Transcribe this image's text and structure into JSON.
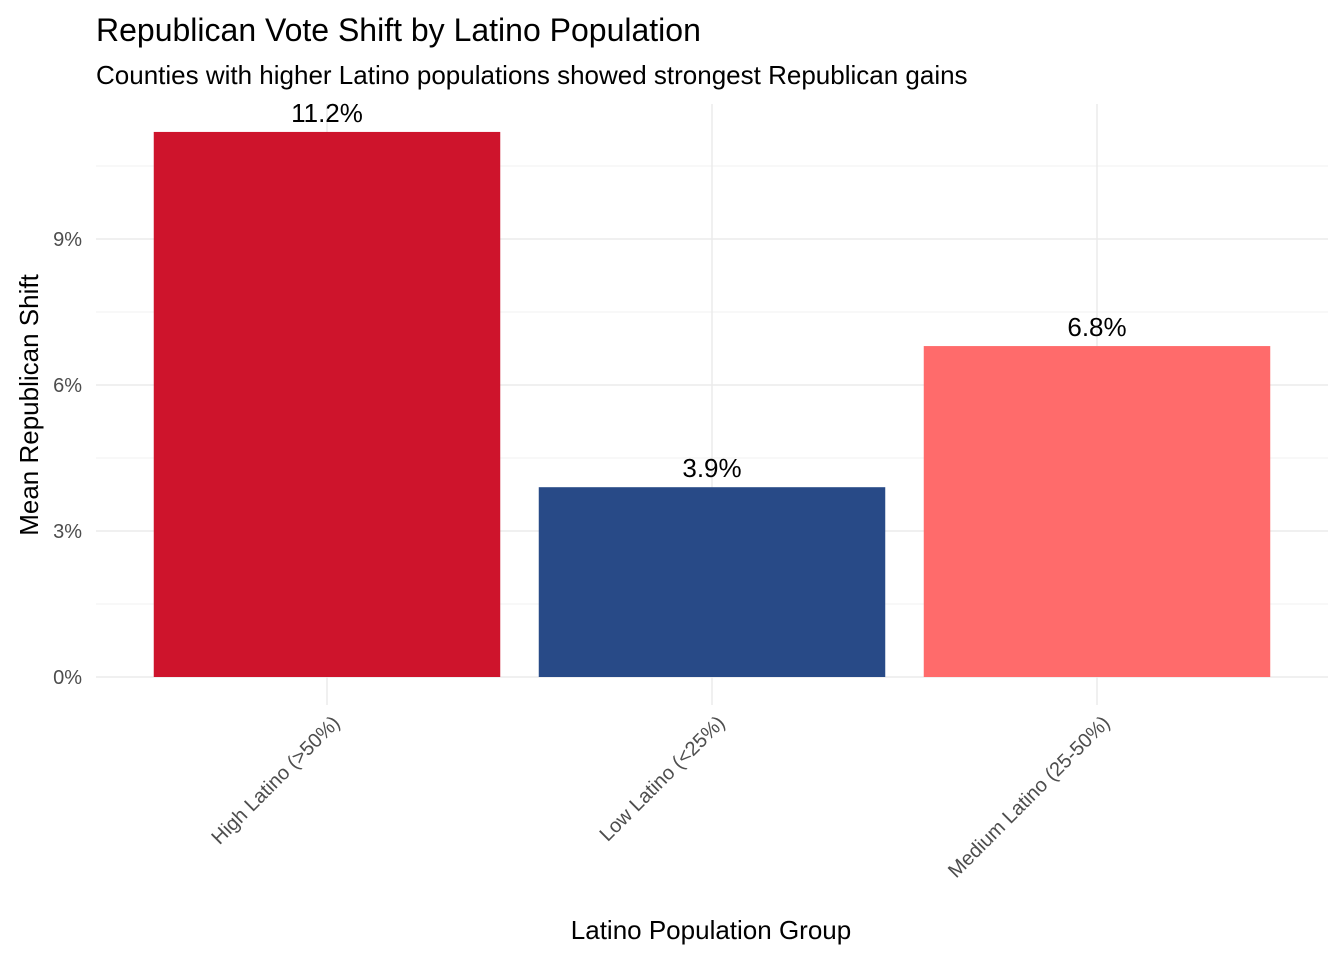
{
  "chart_data": {
    "type": "bar",
    "title": "Republican Vote Shift by Latino Population",
    "subtitle": "Counties with higher Latino populations showed strongest Republican gains",
    "xlabel": "Latino Population Group",
    "ylabel": "Mean Republican Shift",
    "categories": [
      "High Latino (>50%)",
      "Low Latino (<25%)",
      "Medium Latino (25-50%)"
    ],
    "values": [
      11.2,
      3.9,
      6.8
    ],
    "data_labels": [
      "11.2%",
      "3.9%",
      "6.8%"
    ],
    "colors": [
      "#CE142C",
      "#284A87",
      "#FF6B6B"
    ],
    "y_ticks": [
      0,
      3,
      6,
      9
    ],
    "y_tick_labels": [
      "0%",
      "3%",
      "6%",
      "9%"
    ],
    "ylim": [
      0,
      11.76
    ],
    "grid": true,
    "legend": "none"
  }
}
